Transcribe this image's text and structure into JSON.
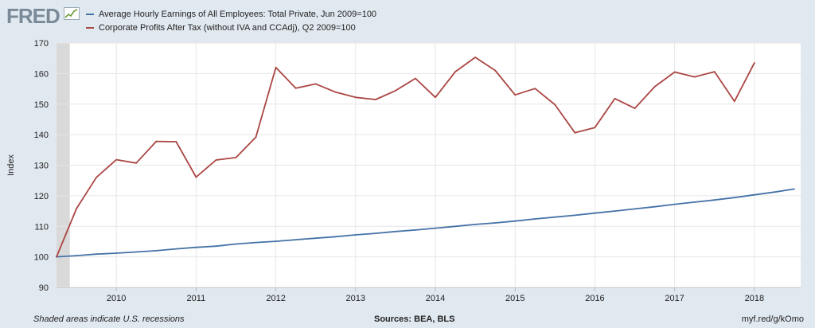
{
  "header": {
    "logo_text": "FRED",
    "legend": [
      {
        "label": "Average Hourly Earnings of All Employees: Total Private, Jun 2009=100",
        "color": "#4572a7"
      },
      {
        "label": "Corporate Profits After Tax (without IVA and CCAdj), Q2 2009=100",
        "color": "#aa4643"
      }
    ]
  },
  "footer": {
    "recession_note": "Shaded areas indicate U.S. recessions",
    "sources": "Sources: BEA, BLS",
    "short_url": "myf.red/g/kOmo"
  },
  "chart_data": {
    "type": "line",
    "ylabel": "Index",
    "ylim": [
      90,
      170
    ],
    "y_ticks": [
      90,
      100,
      110,
      120,
      130,
      140,
      150,
      160,
      170
    ],
    "x_ticks": [
      "2010",
      "2011",
      "2012",
      "2013",
      "2014",
      "2015",
      "2016",
      "2017",
      "2018"
    ],
    "grid": true,
    "recession_shading": {
      "start": "2009-04",
      "end": "2009-06",
      "color": "#d9d9d9"
    },
    "series": [
      {
        "name": "Average Hourly Earnings of All Employees: Total Private, Jun 2009=100",
        "color": "#4572a7",
        "x": [
          "2009-04",
          "2009-07",
          "2009-10",
          "2010-01",
          "2010-04",
          "2010-07",
          "2010-10",
          "2011-01",
          "2011-04",
          "2011-07",
          "2011-10",
          "2012-01",
          "2012-04",
          "2012-07",
          "2012-10",
          "2013-01",
          "2013-04",
          "2013-07",
          "2013-10",
          "2014-01",
          "2014-04",
          "2014-07",
          "2014-10",
          "2015-01",
          "2015-04",
          "2015-07",
          "2015-10",
          "2016-01",
          "2016-04",
          "2016-07",
          "2016-10",
          "2017-01",
          "2017-04",
          "2017-07",
          "2017-10",
          "2018-01",
          "2018-04",
          "2018-07"
        ],
        "values": [
          100.0,
          100.4,
          100.9,
          101.2,
          101.6,
          102.0,
          102.6,
          103.1,
          103.5,
          104.2,
          104.7,
          105.1,
          105.6,
          106.1,
          106.6,
          107.2,
          107.7,
          108.3,
          108.8,
          109.4,
          110.0,
          110.6,
          111.1,
          111.7,
          112.4,
          113.0,
          113.6,
          114.3,
          115.0,
          115.7,
          116.4,
          117.2,
          117.9,
          118.6,
          119.4,
          120.3,
          121.2,
          122.2
        ]
      },
      {
        "name": "Corporate Profits After Tax (without IVA and CCAdj), Q2 2009=100",
        "color": "#aa4643",
        "x": [
          "2009-04",
          "2009-07",
          "2009-10",
          "2010-01",
          "2010-04",
          "2010-07",
          "2010-10",
          "2011-01",
          "2011-04",
          "2011-07",
          "2011-10",
          "2012-01",
          "2012-04",
          "2012-07",
          "2012-10",
          "2013-01",
          "2013-04",
          "2013-07",
          "2013-10",
          "2014-01",
          "2014-04",
          "2014-07",
          "2014-10",
          "2015-01",
          "2015-04",
          "2015-07",
          "2015-10",
          "2016-01",
          "2016-04",
          "2016-07",
          "2016-10",
          "2017-01",
          "2017-04",
          "2017-07",
          "2017-10",
          "2018-01"
        ],
        "values": [
          100.0,
          115.8,
          126.0,
          131.8,
          130.7,
          137.8,
          137.7,
          126.1,
          131.7,
          132.5,
          139.2,
          162.0,
          155.2,
          156.6,
          153.9,
          152.2,
          151.5,
          154.4,
          158.4,
          152.2,
          160.6,
          165.3,
          161.0,
          153.0,
          155.1,
          149.8,
          140.6,
          142.3,
          151.8,
          148.6,
          155.7,
          160.5,
          158.9,
          160.6,
          150.9,
          163.5
        ]
      }
    ]
  }
}
